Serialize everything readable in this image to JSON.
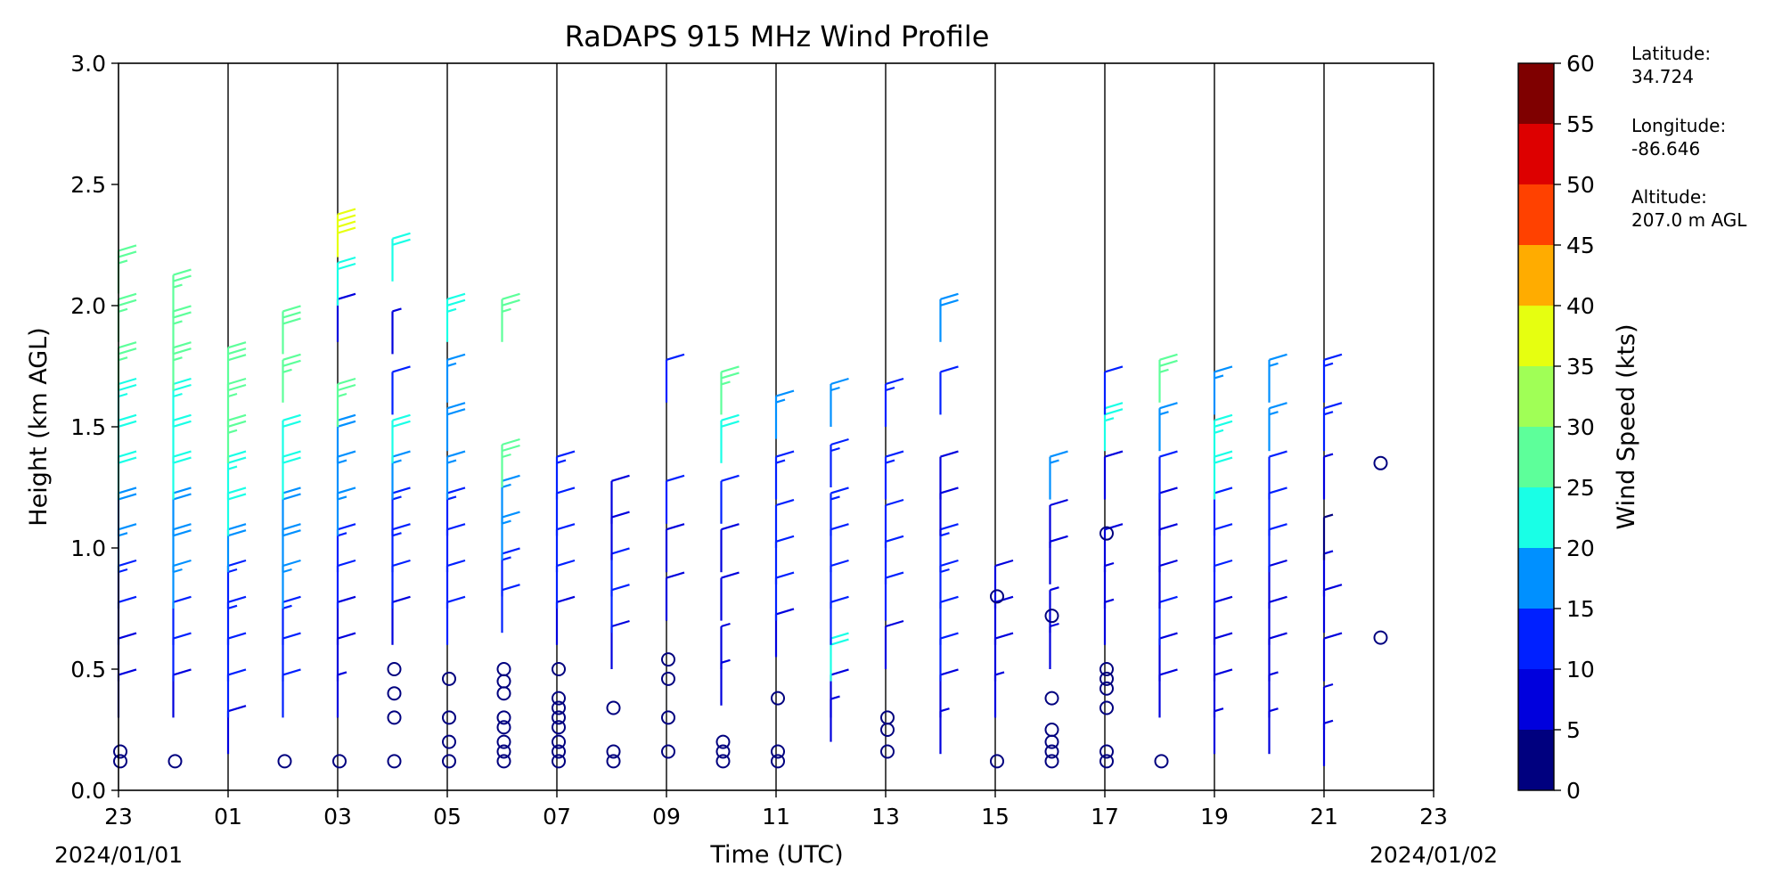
{
  "chart_data": {
    "type": "wind barb profile",
    "title": "RaDAPS 915 MHz Wind Profile",
    "xlabel": "Time (UTC)",
    "ylabel": "Height (km AGL)",
    "date_start": "2024/01/01",
    "date_end": "2024/01/02",
    "x_tick_labels": [
      "23",
      "01",
      "03",
      "05",
      "07",
      "09",
      "11",
      "13",
      "15",
      "17",
      "19",
      "21",
      "23"
    ],
    "x_range_hours": [
      -1,
      23
    ],
    "ylim": [
      0,
      3.0
    ],
    "y_tick_labels": [
      "0.0",
      "0.5",
      "1.0",
      "1.5",
      "2.0",
      "2.5",
      "3.0"
    ],
    "y_ticks": [
      0,
      0.5,
      1.0,
      1.5,
      2.0,
      2.5,
      3.0
    ],
    "grid": "vertical lines every 2 hours",
    "colorbar": {
      "label": "Wind Speed (kts)",
      "bounds": [
        0,
        5,
        10,
        15,
        20,
        25,
        30,
        35,
        40,
        45,
        50,
        55,
        60
      ],
      "tick_labels": [
        "0",
        "5",
        "10",
        "15",
        "20",
        "25",
        "30",
        "35",
        "40",
        "45",
        "50",
        "55",
        "60"
      ],
      "colors": [
        "#00007f",
        "#0000dd",
        "#0020ff",
        "#0090ff",
        "#19ffe6",
        "#5dff9a",
        "#a0ff56",
        "#e6ff10",
        "#ffac00",
        "#ff4100",
        "#dd0000",
        "#7f0000"
      ]
    },
    "station_info": [
      "Latitude:",
      "34.724",
      "Longitude:",
      "-86.646",
      "Altitude:",
      "207.0 m AGL"
    ],
    "profiles": [
      {
        "time": -1.0,
        "heights": [
          0.12,
          0.16,
          0.3,
          0.45,
          0.6,
          0.75,
          0.9,
          1.05,
          1.2,
          1.35,
          1.5,
          1.65,
          1.85,
          2.05
        ],
        "speeds": [
          0,
          0,
          8,
          9,
          12,
          13,
          17,
          18,
          21,
          22,
          24,
          25,
          27,
          27
        ]
      },
      {
        "time": 0.0,
        "heights": [
          0.12,
          0.3,
          0.45,
          0.6,
          0.75,
          0.9,
          1.05,
          1.2,
          1.35,
          1.5,
          1.65,
          1.8,
          1.95
        ],
        "speeds": [
          0,
          9,
          10,
          12,
          15,
          18,
          19,
          20,
          22,
          23,
          25,
          27,
          27
        ]
      },
      {
        "time": 1.0,
        "heights": [
          0.15,
          0.3,
          0.45,
          0.6,
          0.75,
          0.9,
          1.05,
          1.2,
          1.35,
          1.5,
          1.65
        ],
        "speeds": [
          8,
          10,
          12,
          13,
          14,
          18,
          20,
          24,
          26,
          27,
          29
        ]
      },
      {
        "time": 2.0,
        "heights": [
          0.12,
          0.3,
          0.45,
          0.6,
          0.75,
          0.9,
          1.05,
          1.2,
          1.35,
          1.6,
          1.8
        ],
        "speeds": [
          0,
          11,
          12,
          14,
          16,
          18,
          19,
          20,
          21,
          25,
          28
        ]
      },
      {
        "time": 3.0,
        "heights": [
          0.12,
          0.3,
          0.45,
          0.6,
          0.75,
          0.9,
          1.05,
          1.2,
          1.35,
          1.5,
          1.85,
          2.0,
          2.2
        ],
        "speeds": [
          0,
          6,
          8,
          9,
          11,
          13,
          15,
          17,
          19,
          26,
          8,
          22,
          38
        ]
      },
      {
        "time": 4.0,
        "heights": [
          0.12,
          0.3,
          0.4,
          0.5,
          0.6,
          0.75,
          0.9,
          1.05,
          1.2,
          1.35,
          1.55,
          1.8,
          2.1
        ],
        "speeds": [
          0,
          0,
          0,
          0,
          9,
          11,
          13,
          14,
          15,
          22,
          12,
          6,
          21
        ]
      },
      {
        "time": 5.0,
        "heights": [
          0.12,
          0.2,
          0.3,
          0.46,
          0.6,
          0.75,
          0.9,
          1.05,
          1.2,
          1.4,
          1.6,
          1.85
        ],
        "speeds": [
          0,
          0,
          0,
          0,
          10,
          11,
          12,
          13,
          15,
          18,
          16,
          24
        ]
      },
      {
        "time": 6.0,
        "heights": [
          0.12,
          0.16,
          0.2,
          0.26,
          0.3,
          0.4,
          0.45,
          0.5,
          0.65,
          0.8,
          0.95,
          1.1,
          1.25,
          1.85
        ],
        "speeds": [
          0,
          0,
          0,
          0,
          0,
          0,
          0,
          0,
          11,
          14,
          15,
          17,
          26,
          27
        ]
      },
      {
        "time": 7.0,
        "heights": [
          0.12,
          0.16,
          0.2,
          0.26,
          0.3,
          0.34,
          0.38,
          0.5,
          0.6,
          0.75,
          0.9,
          1.05,
          1.2
        ],
        "speeds": [
          0,
          0,
          0,
          0,
          0,
          0,
          0,
          0,
          8,
          10,
          11,
          12,
          14
        ]
      },
      {
        "time": 8.0,
        "heights": [
          0.12,
          0.16,
          0.34,
          0.5,
          0.65,
          0.8,
          0.95,
          1.1
        ],
        "speeds": [
          0,
          0,
          0,
          8,
          11,
          10,
          9,
          9
        ]
      },
      {
        "time": 9.0,
        "heights": [
          0.16,
          0.3,
          0.46,
          0.54,
          0.7,
          0.9,
          1.1,
          1.6
        ],
        "speeds": [
          0,
          0,
          0,
          0,
          8,
          9,
          10,
          12
        ]
      },
      {
        "time": 10.0,
        "heights": [
          0.12,
          0.16,
          0.2,
          0.35,
          0.5,
          0.7,
          0.9,
          1.1,
          1.35,
          1.55
        ],
        "speeds": [
          0,
          0,
          0,
          6,
          7,
          8,
          9,
          11,
          21,
          25
        ]
      },
      {
        "time": 11.0,
        "heights": [
          0.12,
          0.16,
          0.38,
          0.55,
          0.7,
          0.85,
          1.0,
          1.2,
          1.45
        ],
        "speeds": [
          0,
          0,
          0,
          9,
          10,
          11,
          12,
          13,
          15
        ]
      },
      {
        "time": 12.0,
        "heights": [
          0.2,
          0.3,
          0.45,
          0.6,
          0.75,
          0.9,
          1.05,
          1.25,
          1.5
        ],
        "speeds": [
          6,
          8,
          21,
          10,
          11,
          12,
          13,
          14,
          15
        ]
      },
      {
        "time": 13.0,
        "heights": [
          0.16,
          0.25,
          0.3,
          0.5,
          0.7,
          0.85,
          1.0,
          1.2,
          1.5
        ],
        "speeds": [
          0,
          0,
          0,
          8,
          10,
          11,
          12,
          13,
          14
        ]
      },
      {
        "time": 14.0,
        "heights": [
          0.15,
          0.3,
          0.45,
          0.6,
          0.75,
          0.9,
          1.05,
          1.2,
          1.55,
          1.85
        ],
        "speeds": [
          7,
          8,
          10,
          12,
          14,
          13,
          8,
          9,
          12,
          19
        ]
      },
      {
        "time": 15.0,
        "heights": [
          0.12,
          0.3,
          0.45,
          0.6,
          0.75,
          0.8
        ],
        "speeds": [
          0,
          6,
          8,
          9,
          8,
          0
        ]
      },
      {
        "time": 16.0,
        "heights": [
          0.12,
          0.16,
          0.2,
          0.25,
          0.38,
          0.5,
          0.65,
          0.72,
          0.85,
          1.0,
          1.2
        ],
        "speeds": [
          0,
          0,
          0,
          0,
          0,
          6,
          7,
          0,
          8,
          9,
          16
        ]
      },
      {
        "time": 17.0,
        "heights": [
          0.12,
          0.16,
          0.34,
          0.42,
          0.46,
          0.5,
          0.6,
          0.75,
          0.9,
          1.06,
          1.2,
          1.4,
          1.55
        ],
        "speeds": [
          0,
          0,
          0,
          0,
          0,
          0,
          6,
          7,
          8,
          0,
          9,
          24,
          10
        ]
      },
      {
        "time": 18.0,
        "heights": [
          0.12,
          0.3,
          0.45,
          0.6,
          0.75,
          0.9,
          1.05,
          1.2,
          1.4,
          1.6
        ],
        "speeds": [
          0,
          8,
          9,
          10,
          9,
          8,
          9,
          10,
          16,
          27
        ]
      },
      {
        "time": 19.0,
        "heights": [
          0.15,
          0.3,
          0.45,
          0.6,
          0.75,
          0.9,
          1.05,
          1.2,
          1.35,
          1.55
        ],
        "speeds": [
          7,
          8,
          9,
          9,
          10,
          11,
          12,
          20,
          24,
          17
        ]
      },
      {
        "time": 20.0,
        "heights": [
          0.15,
          0.3,
          0.45,
          0.6,
          0.75,
          0.9,
          1.05,
          1.2,
          1.4,
          1.6
        ],
        "speeds": [
          6,
          7,
          8,
          8,
          9,
          10,
          11,
          12,
          16,
          15
        ]
      },
      {
        "time": 21.0,
        "heights": [
          0.1,
          0.25,
          0.45,
          0.65,
          0.8,
          0.95,
          1.2,
          1.4,
          1.6
        ],
        "speeds": [
          6,
          7,
          8,
          9,
          7,
          4,
          6,
          13,
          14
        ]
      },
      {
        "time": 22.0,
        "heights": [
          0.63,
          1.35
        ],
        "speeds": [
          0,
          0
        ]
      }
    ]
  }
}
